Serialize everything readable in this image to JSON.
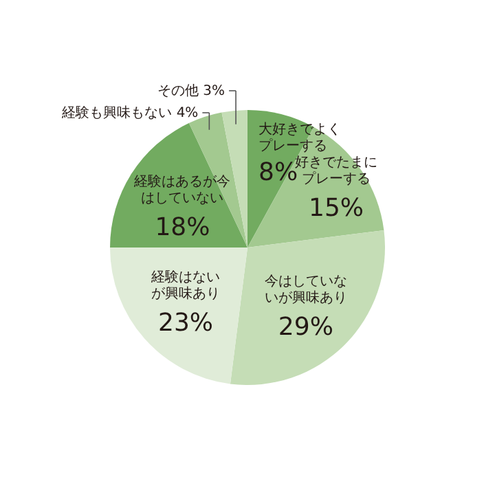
{
  "chart_data": {
    "type": "pie",
    "categories": [
      "大好きでよくプレーする",
      "好きでたまにプレーする",
      "今はしていないが興味あり",
      "経験はないが興味あり",
      "経験はあるが今はしていない",
      "経験も興味もない",
      "その他"
    ],
    "values": [
      8,
      15,
      29,
      23,
      18,
      4,
      3
    ],
    "value_labels": [
      "8%",
      "15%",
      "29%",
      "23%",
      "18%",
      "4%",
      "3%"
    ],
    "colors": [
      "#72ab60",
      "#a3c990",
      "#c5ddb6",
      "#e0ecd8",
      "#72ab60",
      "#a3c990",
      "#c5ddb6"
    ]
  }
}
